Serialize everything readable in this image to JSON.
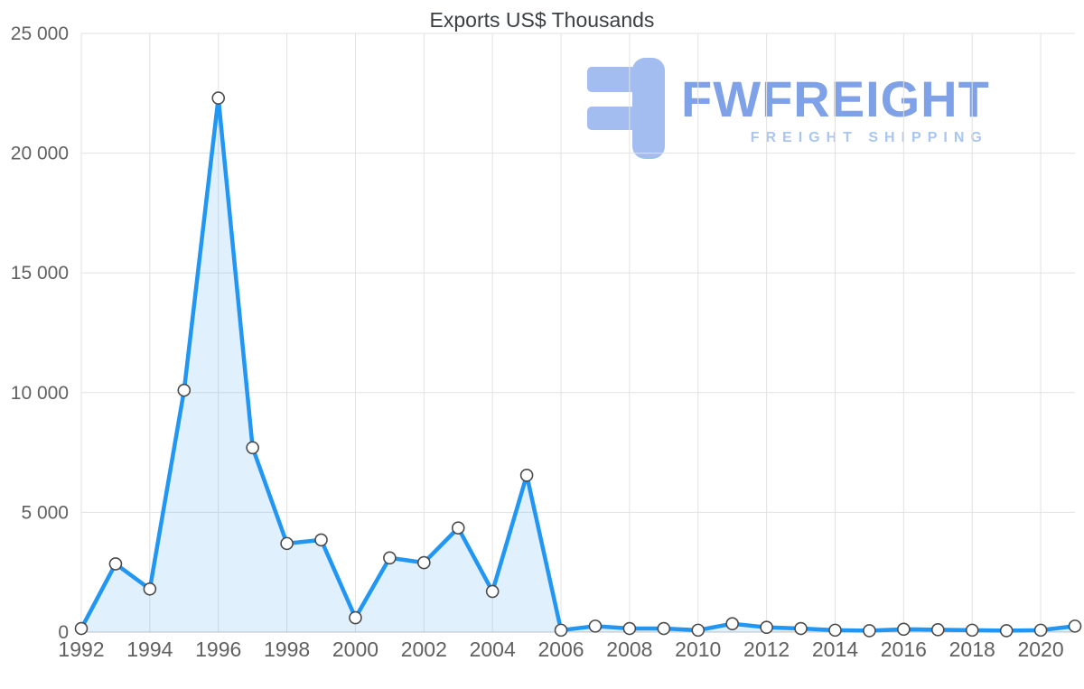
{
  "watermark": {
    "brand": "FWFREIGHT",
    "tagline": "FREIGHT SHIPPING"
  },
  "chart_data": {
    "type": "area",
    "title": "Exports US$ Thousands",
    "xlabel": "",
    "ylabel": "",
    "x": [
      1992,
      1993,
      1994,
      1995,
      1996,
      1997,
      1998,
      1999,
      2000,
      2001,
      2002,
      2003,
      2004,
      2005,
      2006,
      2007,
      2008,
      2009,
      2010,
      2011,
      2012,
      2013,
      2014,
      2015,
      2016,
      2017,
      2018,
      2019,
      2020,
      2021
    ],
    "values": [
      150,
      2850,
      1800,
      10100,
      22300,
      7700,
      3700,
      3850,
      600,
      3100,
      2900,
      4350,
      1700,
      6550,
      80,
      250,
      150,
      150,
      80,
      350,
      200,
      150,
      80,
      60,
      120,
      100,
      80,
      60,
      80,
      250
    ],
    "ylim": [
      0,
      25000
    ],
    "y_ticks": [
      0,
      5000,
      10000,
      15000,
      20000,
      25000
    ],
    "y_tick_labels": [
      "0",
      "5 000",
      "10 000",
      "15 000",
      "20 000",
      "25 000"
    ],
    "x_tick_years": [
      1992,
      1994,
      1996,
      1998,
      2000,
      2002,
      2004,
      2006,
      2008,
      2010,
      2012,
      2014,
      2016,
      2018,
      2020
    ],
    "grid": true,
    "legend": "none",
    "colors": {
      "line": "#2196f3",
      "area_fill": "#2196f3",
      "area_opacity": 0.14,
      "marker_fill": "#ffffff",
      "marker_stroke": "#4a4a4a",
      "grid": "#e2e2e2",
      "zero_axis": "#c4c4c4",
      "tick_text": "#616161",
      "title_text": "#3c4043",
      "logo_blue": "#a3bdf0",
      "brand_blue": "#7fa1e8",
      "tagline_blue": "#a9c6f3"
    }
  }
}
